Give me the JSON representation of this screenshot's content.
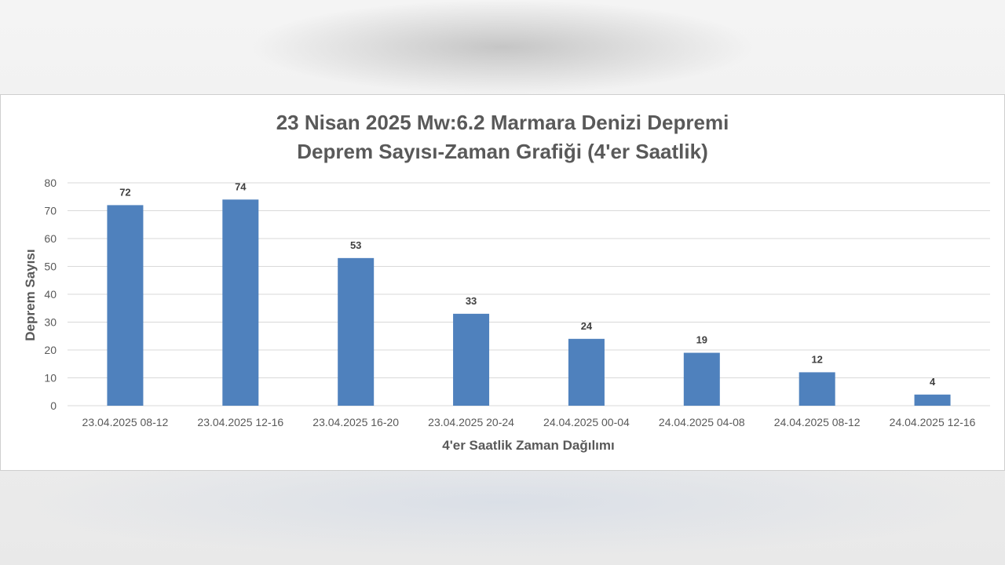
{
  "chart_data": {
    "type": "bar",
    "title": "23 Nisan 2025 Mw:6.2 Marmara Denizi Depremi",
    "subtitle": "Deprem Sayısı-Zaman Grafiği (4'er Saatlik)",
    "xlabel": "4'er Saatlik Zaman Dağılımı",
    "ylabel": "Deprem Sayısı",
    "categories": [
      "23.04.2025 08-12",
      "23.04.2025 12-16",
      "23.04.2025 16-20",
      "23.04.2025 20-24",
      "24.04.2025 00-04",
      "24.04.2025 04-08",
      "24.04.2025 08-12",
      "24.04.2025 12-16"
    ],
    "values": [
      72,
      74,
      53,
      33,
      24,
      19,
      12,
      4
    ],
    "data_labels": [
      "72",
      "74",
      "53",
      "33",
      "24",
      "19",
      "12",
      "4"
    ],
    "ylim": [
      0,
      80
    ],
    "y_ticks": [
      "0",
      "10",
      "20",
      "30",
      "40",
      "50",
      "60",
      "70",
      "80"
    ],
    "grid": true,
    "bar_color": "#4f81bd",
    "grid_color": "#d9d9d9",
    "text_color": "#595959"
  }
}
